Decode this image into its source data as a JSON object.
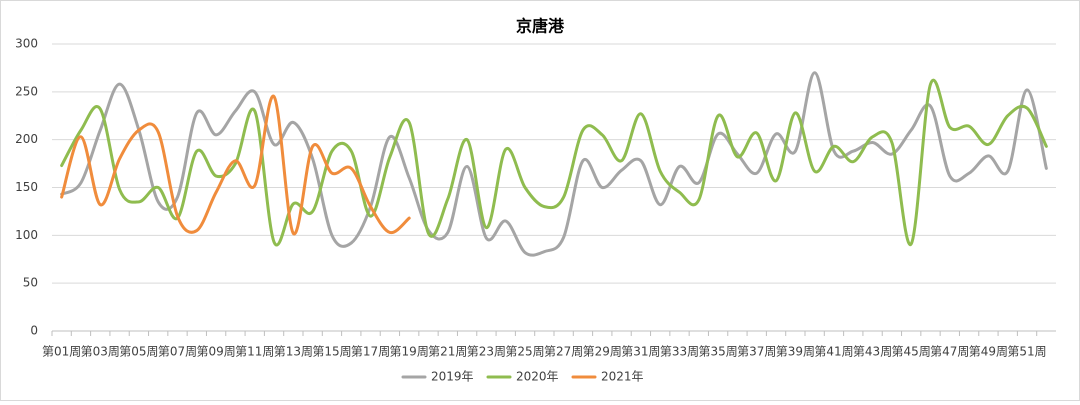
{
  "chart_data": {
    "type": "line",
    "title": "京唐港",
    "categories": [
      "第01周",
      null,
      "第03周",
      null,
      "第05周",
      null,
      "第07周",
      null,
      "第09周",
      null,
      "第11周",
      null,
      "第13周",
      null,
      "第15周",
      null,
      "第17周",
      null,
      "第19周",
      null,
      "第21周",
      null,
      "第23周",
      null,
      "第25周",
      null,
      "第27周",
      null,
      "第29周",
      null,
      "第31周",
      null,
      "第33周",
      null,
      "第35周",
      null,
      "第37周",
      null,
      "第39周",
      null,
      "第41周",
      null,
      "第43周",
      null,
      "第45周",
      null,
      "第47周",
      null,
      "第49周",
      null,
      "第51周",
      null
    ],
    "series": [
      {
        "name": "2019年",
        "color": "#a5a5a5",
        "values": [
          143,
          155,
          210,
          258,
          210,
          135,
          140,
          228,
          205,
          230,
          250,
          195,
          218,
          180,
          100,
          92,
          130,
          203,
          160,
          105,
          103,
          172,
          97,
          115,
          82,
          83,
          98,
          178,
          150,
          168,
          178,
          132,
          172,
          155,
          206,
          185,
          165,
          206,
          188,
          270,
          188,
          188,
          197,
          185,
          210,
          235,
          162,
          165,
          183,
          167,
          252,
          170
        ]
      },
      {
        "name": "2020年",
        "color": "#8fbc4f",
        "values": [
          173,
          210,
          232,
          148,
          135,
          150,
          118,
          188,
          162,
          175,
          230,
          93,
          133,
          125,
          188,
          188,
          120,
          182,
          218,
          102,
          138,
          200,
          108,
          190,
          150,
          130,
          140,
          210,
          205,
          178,
          227,
          167,
          145,
          137,
          225,
          182,
          207,
          157,
          228,
          167,
          193,
          177,
          203,
          197,
          91,
          258,
          213,
          214,
          195,
          225,
          233,
          193
        ]
      },
      {
        "name": "2021年",
        "color": "#f08c3c",
        "values": [
          140,
          203,
          132,
          180,
          210,
          208,
          120,
          105,
          145,
          178,
          152,
          245,
          102,
          193,
          165,
          170,
          130,
          103,
          118,
          null,
          null,
          null,
          null,
          null,
          null,
          null,
          null,
          null,
          null,
          null,
          null,
          null,
          null,
          null,
          null,
          null,
          null,
          null,
          null,
          null,
          null,
          null,
          null,
          null,
          null,
          null,
          null,
          null,
          null,
          null,
          null,
          null
        ]
      }
    ],
    "ylim": [
      0,
      300
    ],
    "yticks": [
      0,
      50,
      100,
      150,
      200,
      250,
      300
    ],
    "grid": true
  }
}
